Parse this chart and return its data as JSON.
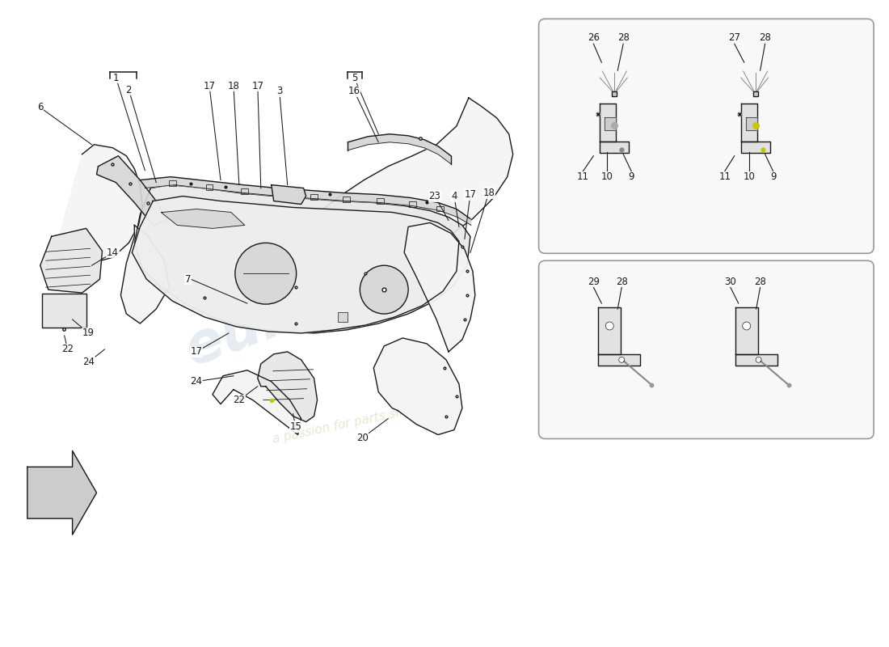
{
  "bg_color": "#ffffff",
  "lc": "#1a1a1a",
  "fc_light": "#f4f4f4",
  "fc_mid": "#e8e8e8",
  "fc_dark": "#d8d8d8",
  "inset_bg": "#f8f8f8",
  "inset_border": "#999999",
  "wm1_color": "#c8d5e2",
  "wm2_color": "#cce0b0",
  "wm1_alpha": 0.45,
  "wm2_alpha": 0.6,
  "lw": 1.0,
  "lt": 0.6,
  "fs": 8.5,
  "arrow_lw": 0.75
}
